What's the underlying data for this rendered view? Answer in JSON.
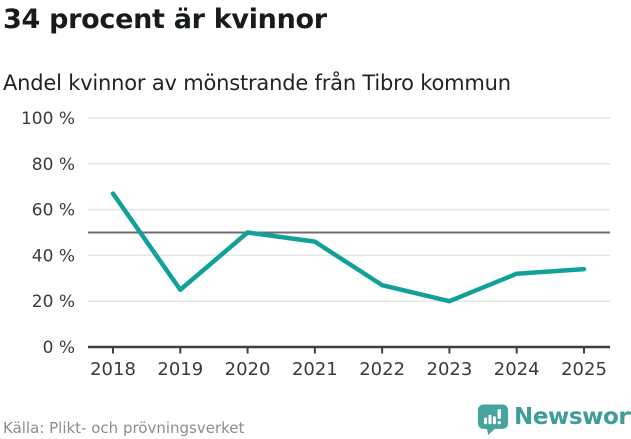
{
  "chart_data": {
    "type": "line",
    "x": [
      "2018",
      "2019",
      "2020",
      "2021",
      "2022",
      "2023",
      "2024",
      "2025"
    ],
    "series": [
      {
        "name": "Andel kvinnor av mönstrande",
        "values": [
          67,
          25,
          50,
          46,
          27,
          20,
          32,
          34
        ]
      }
    ],
    "title": "34 procent är kvinnor",
    "subtitle": "Andel kvinnor av mönstrande från Tibro kommun",
    "xlabel": "",
    "ylabel": "",
    "ylim": [
      0,
      100
    ],
    "yticks": [
      0,
      20,
      40,
      60,
      80,
      100
    ],
    "ytick_suffix": " %",
    "reference_line": 50,
    "grid": true,
    "legend": "none"
  },
  "footer": {
    "source": "Källa: Plikt- och prövningsverket",
    "brand": "Newsworthy"
  },
  "colors": {
    "line": "#12a19a",
    "grid": "#e5e5e5",
    "reference_line": "#6d6d6d",
    "axis": "#3f3f3f",
    "tick_text": "#3b3b3b",
    "title_text": "#171c17",
    "source_text": "#8c8c8c",
    "logo_teal": "#45a49d",
    "wordmark_teal": "#3e9e97"
  }
}
